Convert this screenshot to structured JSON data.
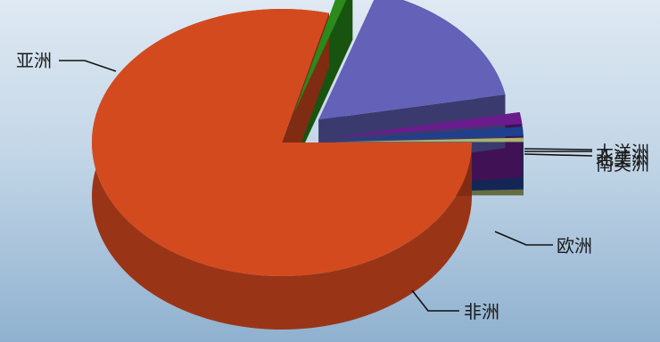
{
  "chart_data": {
    "type": "pie",
    "variant": "3d-exploded",
    "title": "",
    "categories": [
      "亚洲",
      "非洲",
      "欧洲",
      "南美洲",
      "北美洲",
      "大洋洲"
    ],
    "values": [
      79.0,
      1.0,
      17.0,
      1.4,
      1.1,
      0.5
    ],
    "colors": [
      "#d44a1f",
      "#2a8a1a",
      "#6361b8",
      "#6a1c8c",
      "#1f3f8f",
      "#a8b56f"
    ],
    "legend": "none",
    "labels_on_slices": "outside with leader lines"
  }
}
